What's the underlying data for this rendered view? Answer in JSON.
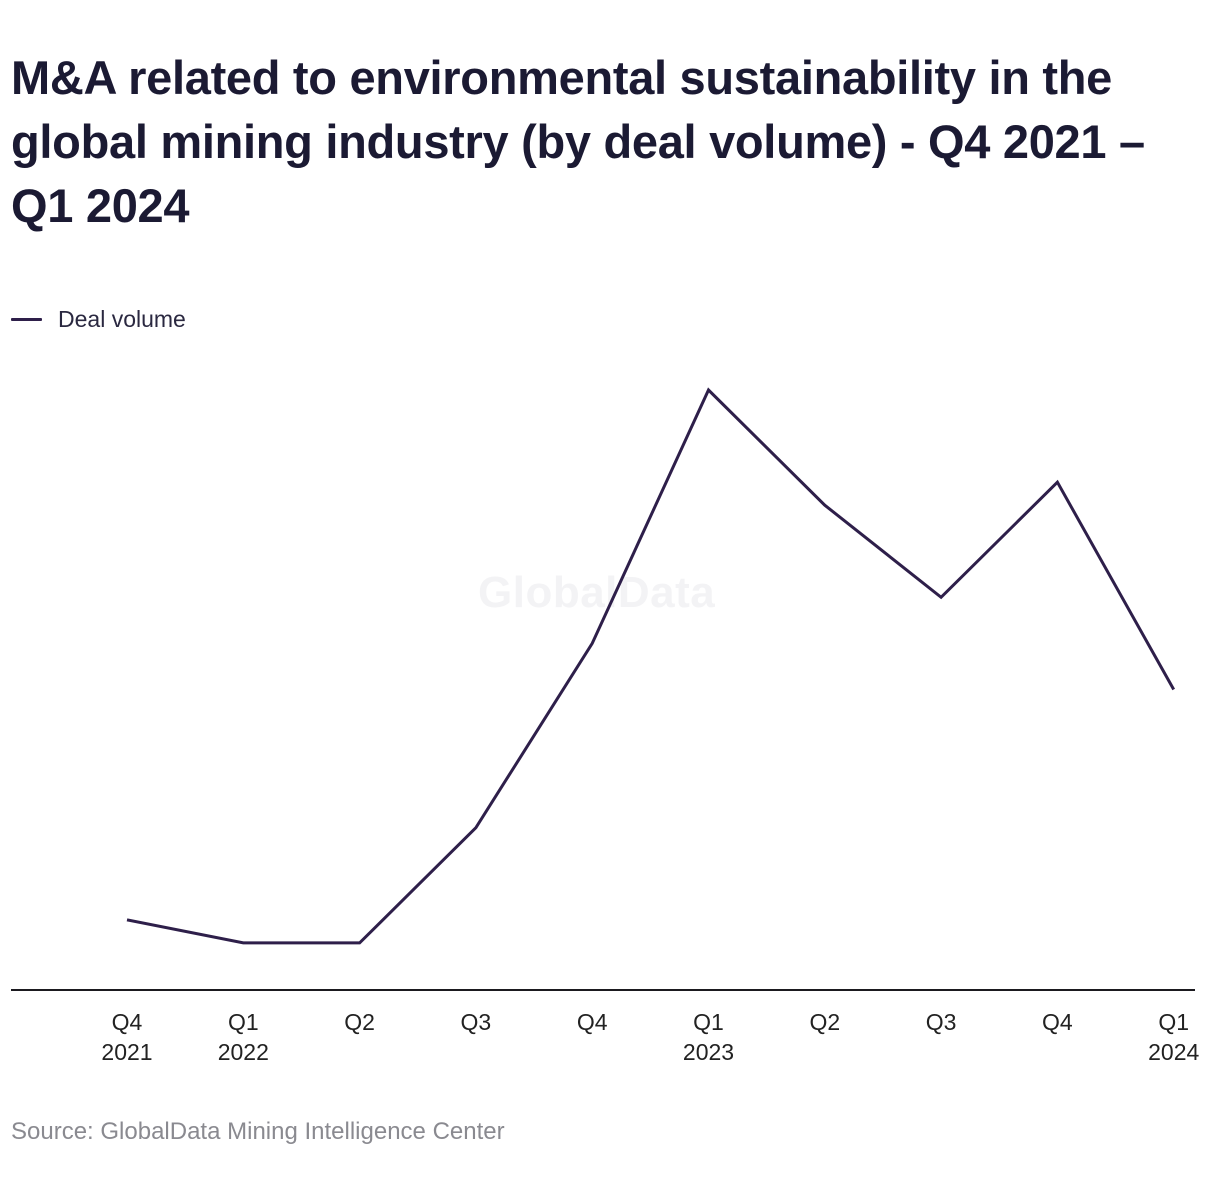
{
  "title": "M&A related to environmental sustainability in the global mining industry (by deal volume) - Q4 2021 – Q1 2024",
  "legend_label": "Deal volume",
  "watermark": "GlobalData",
  "source": "Source: GlobalData Mining Intelligence Center",
  "colors": {
    "line": "#2e1f4a",
    "axis": "#1b1a1f",
    "title": "#1b1a33",
    "source": "#8a8a90"
  },
  "chart_data": {
    "type": "line",
    "title": "M&A related to environmental sustainability in the global mining industry (by deal volume) - Q4 2021 – Q1 2024",
    "xlabel": "",
    "ylabel": "",
    "categories": [
      [
        "Q4",
        "2021"
      ],
      [
        "Q1",
        "2022"
      ],
      [
        "Q2",
        ""
      ],
      [
        "Q3",
        ""
      ],
      [
        "Q4",
        ""
      ],
      [
        "Q1",
        "2023"
      ],
      [
        "Q2",
        ""
      ],
      [
        "Q3",
        ""
      ],
      [
        "Q4",
        ""
      ],
      [
        "Q1",
        "2024"
      ]
    ],
    "series": [
      {
        "name": "Deal volume",
        "values": [
          3,
          2,
          2,
          7,
          15,
          26,
          21,
          17,
          22,
          13
        ]
      }
    ],
    "ylim": [
      0,
      26
    ],
    "grid": false,
    "legend": "top-left"
  }
}
